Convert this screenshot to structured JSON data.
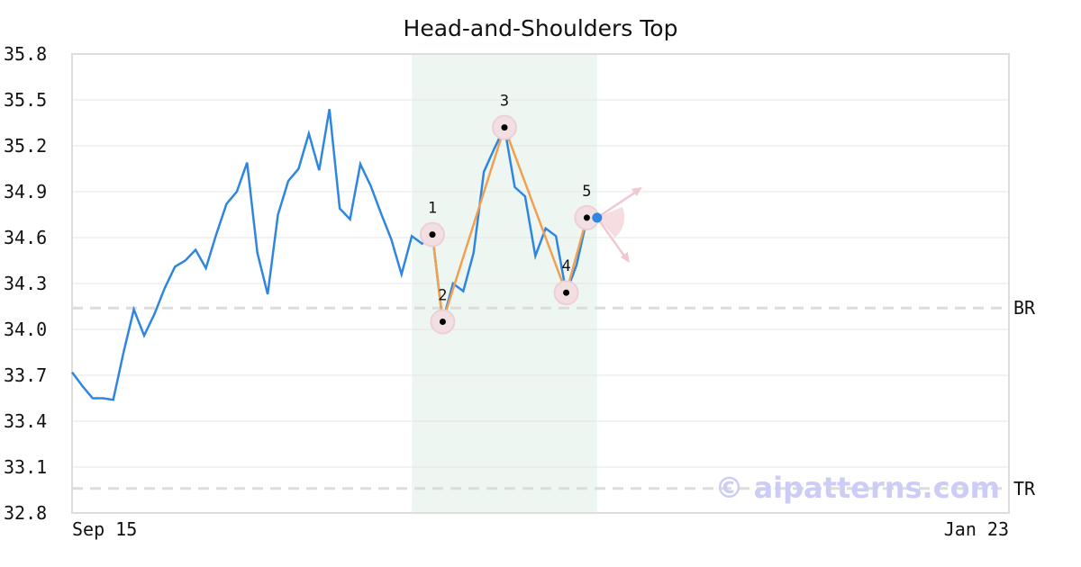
{
  "chart_data": {
    "type": "line",
    "title": "Head-and-Shoulders Top",
    "categories": [
      "Sep 15",
      null,
      null,
      null,
      null,
      null,
      null,
      null,
      null,
      null,
      null,
      null,
      null,
      null,
      null,
      null,
      null,
      null,
      null,
      null,
      null,
      null,
      null,
      null,
      null,
      null,
      null,
      null,
      null,
      null,
      null,
      null,
      null,
      null,
      null,
      null,
      null,
      null,
      null,
      null,
      null,
      null,
      null,
      null,
      null,
      null,
      null,
      null,
      null,
      null,
      null,
      null,
      null,
      null,
      null,
      null,
      null,
      null,
      null,
      null,
      null,
      null,
      null,
      null,
      null,
      null,
      null,
      null,
      null,
      null,
      null,
      null,
      null,
      null,
      null,
      null,
      null,
      null,
      null,
      null,
      null,
      null,
      null,
      null,
      null,
      null,
      null,
      null,
      null,
      null,
      null,
      "Jan 23"
    ],
    "series": [
      {
        "color": "#2f86e0",
        "values": [
          33.72,
          33.63,
          33.55,
          33.55,
          33.54,
          33.85,
          34.13,
          33.96,
          34.1,
          34.27,
          34.41,
          34.45,
          34.52,
          34.4,
          34.62,
          34.82,
          34.9,
          35.09,
          34.5,
          34.23,
          34.75,
          34.97,
          35.05,
          35.28,
          35.04,
          35.44,
          34.79,
          34.72,
          35.08,
          34.94,
          34.76,
          34.59,
          34.36,
          34.61,
          34.56,
          34.62,
          34.05,
          34.3,
          34.25,
          34.5,
          35.03,
          35.18,
          35.32,
          34.93,
          34.87,
          34.48,
          34.66,
          34.61,
          34.24,
          34.42,
          34.72,
          null,
          null,
          null,
          null,
          null,
          null,
          null,
          null,
          null,
          null,
          null,
          null,
          null,
          null,
          null,
          null,
          null,
          null,
          null,
          null,
          null,
          null,
          null,
          null,
          null,
          null,
          null,
          null,
          null,
          null,
          null,
          null,
          null,
          null,
          null,
          null,
          null,
          null,
          null,
          null,
          null
        ]
      }
    ],
    "marker": {
      "x": 51,
      "value": 34.73,
      "color": "#2f86e0"
    },
    "highlight": {
      "x": [
        33,
        51
      ],
      "color": "#eef6f2"
    },
    "pattern": {
      "color": "#f0a050",
      "points": [
        {
          "label": "1",
          "x": 35,
          "value": 34.62
        },
        {
          "label": "2",
          "x": 36,
          "value": 34.05
        },
        {
          "label": "3",
          "x": 42,
          "value": 35.32
        },
        {
          "label": "4",
          "x": 48,
          "value": 34.24
        },
        {
          "label": "5",
          "x": 50,
          "value": 34.73
        }
      ]
    },
    "levels": [
      {
        "label": "BR",
        "value": 34.14
      },
      {
        "label": "TR",
        "value": 32.96
      }
    ],
    "watermark": "© aipatterns.com",
    "ylim": [
      32.8,
      35.8
    ],
    "yticks": [
      32.8,
      33.1,
      33.4,
      33.7,
      {
        "value": 34,
        "label": "34.0"
      },
      34.3,
      34.6,
      34.9,
      35.2,
      35.5,
      35.8
    ],
    "grid": true
  }
}
